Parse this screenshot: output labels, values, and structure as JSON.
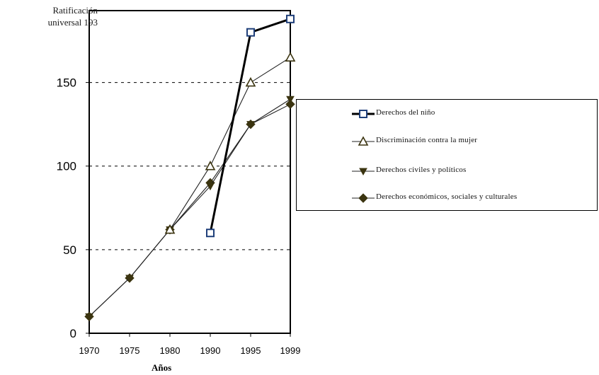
{
  "annotation": {
    "line1": "Ratificación",
    "line2": "universal  193"
  },
  "chart_data": {
    "type": "line",
    "title": "",
    "xlabel": "Años",
    "ylabel": "",
    "categories": [
      "1970",
      "1975",
      "1980",
      "1990",
      "1995",
      "1999"
    ],
    "ylim": [
      0,
      193
    ],
    "yticks": [
      0,
      50,
      100,
      150
    ],
    "grid": "horizontal dashed",
    "legend_position": "right",
    "series": [
      {
        "name": "Derechos del niño",
        "marker": "square",
        "values": [
          null,
          null,
          null,
          60,
          180,
          188
        ]
      },
      {
        "name": "Discriminación contra la mujer",
        "marker": "triangle",
        "values": [
          null,
          null,
          62,
          100,
          150,
          165
        ]
      },
      {
        "name": "Derechos civiles y políticos",
        "marker": "triangle-down",
        "values": [
          10,
          33,
          62,
          88,
          125,
          140
        ]
      },
      {
        "name": "Derechos económicos, sociales y culturales",
        "marker": "diamond",
        "values": [
          10,
          33,
          62,
          90,
          125,
          137
        ]
      }
    ]
  }
}
